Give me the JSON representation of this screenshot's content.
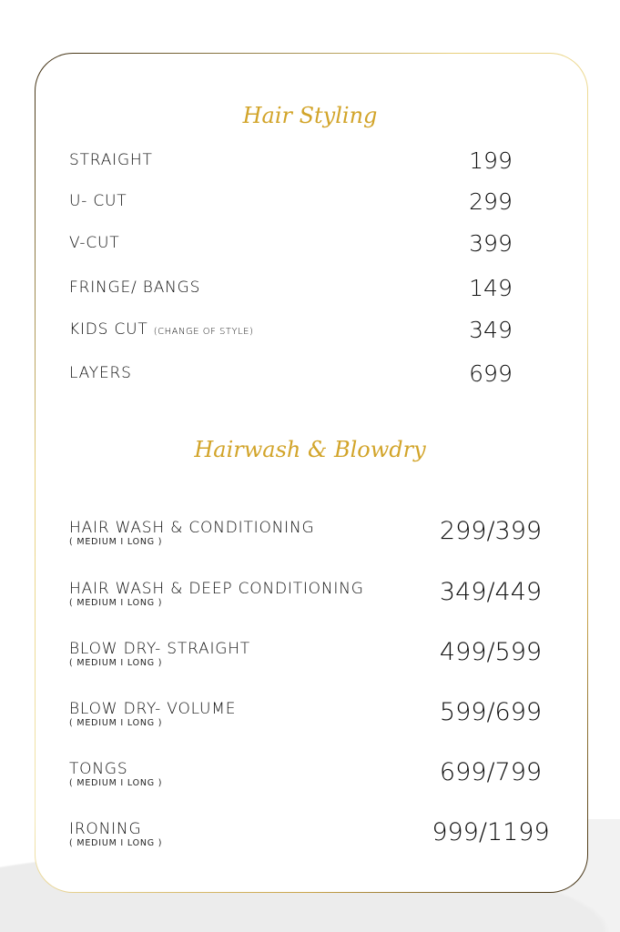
{
  "sections": [
    {
      "title": "Hair Styling",
      "items": [
        {
          "label": "STRAIGHT",
          "price": "199"
        },
        {
          "label": "U- CUT",
          "price": "299"
        },
        {
          "label": "V-CUT",
          "price": "399"
        },
        {
          "label": "FRINGE/ BANGS",
          "price": "149"
        },
        {
          "label": "KIDS CUT",
          "note": "(CHANGE OF STYLE)",
          "price": "349"
        },
        {
          "label": "LAYERS",
          "price": "699"
        }
      ]
    },
    {
      "title": "Hairwash & Blowdry",
      "items": [
        {
          "label": "HAIR WASH & CONDITIONING",
          "sub": "( MEDIUM I LONG )",
          "price": "299/399"
        },
        {
          "label": "HAIR WASH & DEEP CONDITIONING",
          "sub": "( MEDIUM I LONG )",
          "price": "349/449"
        },
        {
          "label": "BLOW DRY- STRAIGHT",
          "sub": "( MEDIUM I LONG )",
          "price": "499/599"
        },
        {
          "label": "BLOW DRY- VOLUME",
          "sub": "( MEDIUM I LONG )",
          "price": "599/699"
        },
        {
          "label": "TONGS",
          "sub": "( MEDIUM I LONG )",
          "price": "699/799"
        },
        {
          "label": "IRONING",
          "sub": "( MEDIUM I LONG )",
          "price": "999/1199"
        }
      ]
    }
  ],
  "colors": {
    "accent_gold": "#d2a429"
  }
}
